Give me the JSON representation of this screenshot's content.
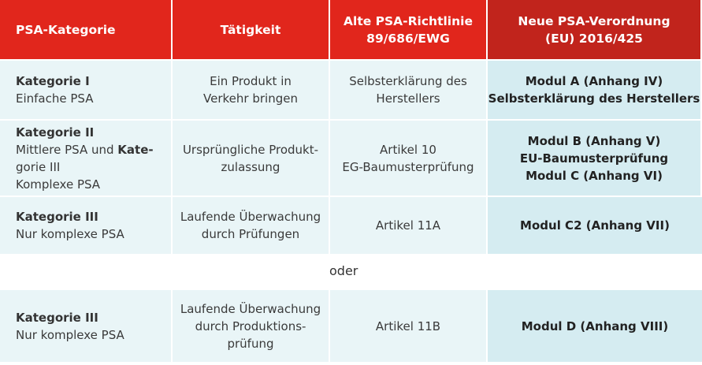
{
  "headers": {
    "col1": "PSA-Kategorie",
    "col2": "Tätigkeit",
    "col3_line1": "Alte PSA-Richtlinie",
    "col3_line2": "89/686/EWG",
    "col4_line1": "Neue PSA-Verordnung",
    "col4_line2": "(EU) 2016/425"
  },
  "rows": [
    {
      "cat_bold": "Kategorie I",
      "cat_sub": "Einfache PSA",
      "activity": [
        "Ein Produkt in",
        "Verkehr bringen"
      ],
      "old": [
        "Selbsterklärung des",
        "Herstellers"
      ],
      "new": [
        "Modul A (Anhang IV)",
        "Selbsterklärung des Herstellers"
      ]
    },
    {
      "cat_bold": "Kategorie II",
      "cat_mid_pre": "Mittlere PSA und ",
      "cat_mid_bold": "Kate-",
      "cat_mid2": "gorie III",
      "cat_sub": "Komplexe PSA",
      "activity": [
        "Ursprüngliche Produkt-",
        "zulassung"
      ],
      "old": [
        "Artikel 10",
        "EG-Baumusterprüfung"
      ],
      "new": [
        "Modul B (Anhang V)",
        "EU-Baumusterprüfung",
        "Modul C (Anhang VI)"
      ]
    },
    {
      "cat_bold": "Kategorie III",
      "cat_sub": "Nur komplexe PSA",
      "activity": [
        "Laufende Überwachung",
        "durch Prüfungen"
      ],
      "old": [
        "Artikel 11A"
      ],
      "new": [
        "Modul C2 (Anhang VII)"
      ]
    }
  ],
  "separator": "oder",
  "last_row": {
    "cat_bold": "Kategorie III",
    "cat_sub": "Nur komplexe PSA",
    "activity": [
      "Laufende Überwachung",
      "durch Produktions-",
      "prüfung"
    ],
    "old": [
      "Artikel 11B"
    ],
    "new": [
      "Modul D (Anhang VIII)"
    ]
  },
  "colors": {
    "header_red": "#e1261c",
    "header_dark_red": "#c1241c",
    "row_light": "#e9f5f7",
    "row_highlight": "#d5ecf1"
  }
}
